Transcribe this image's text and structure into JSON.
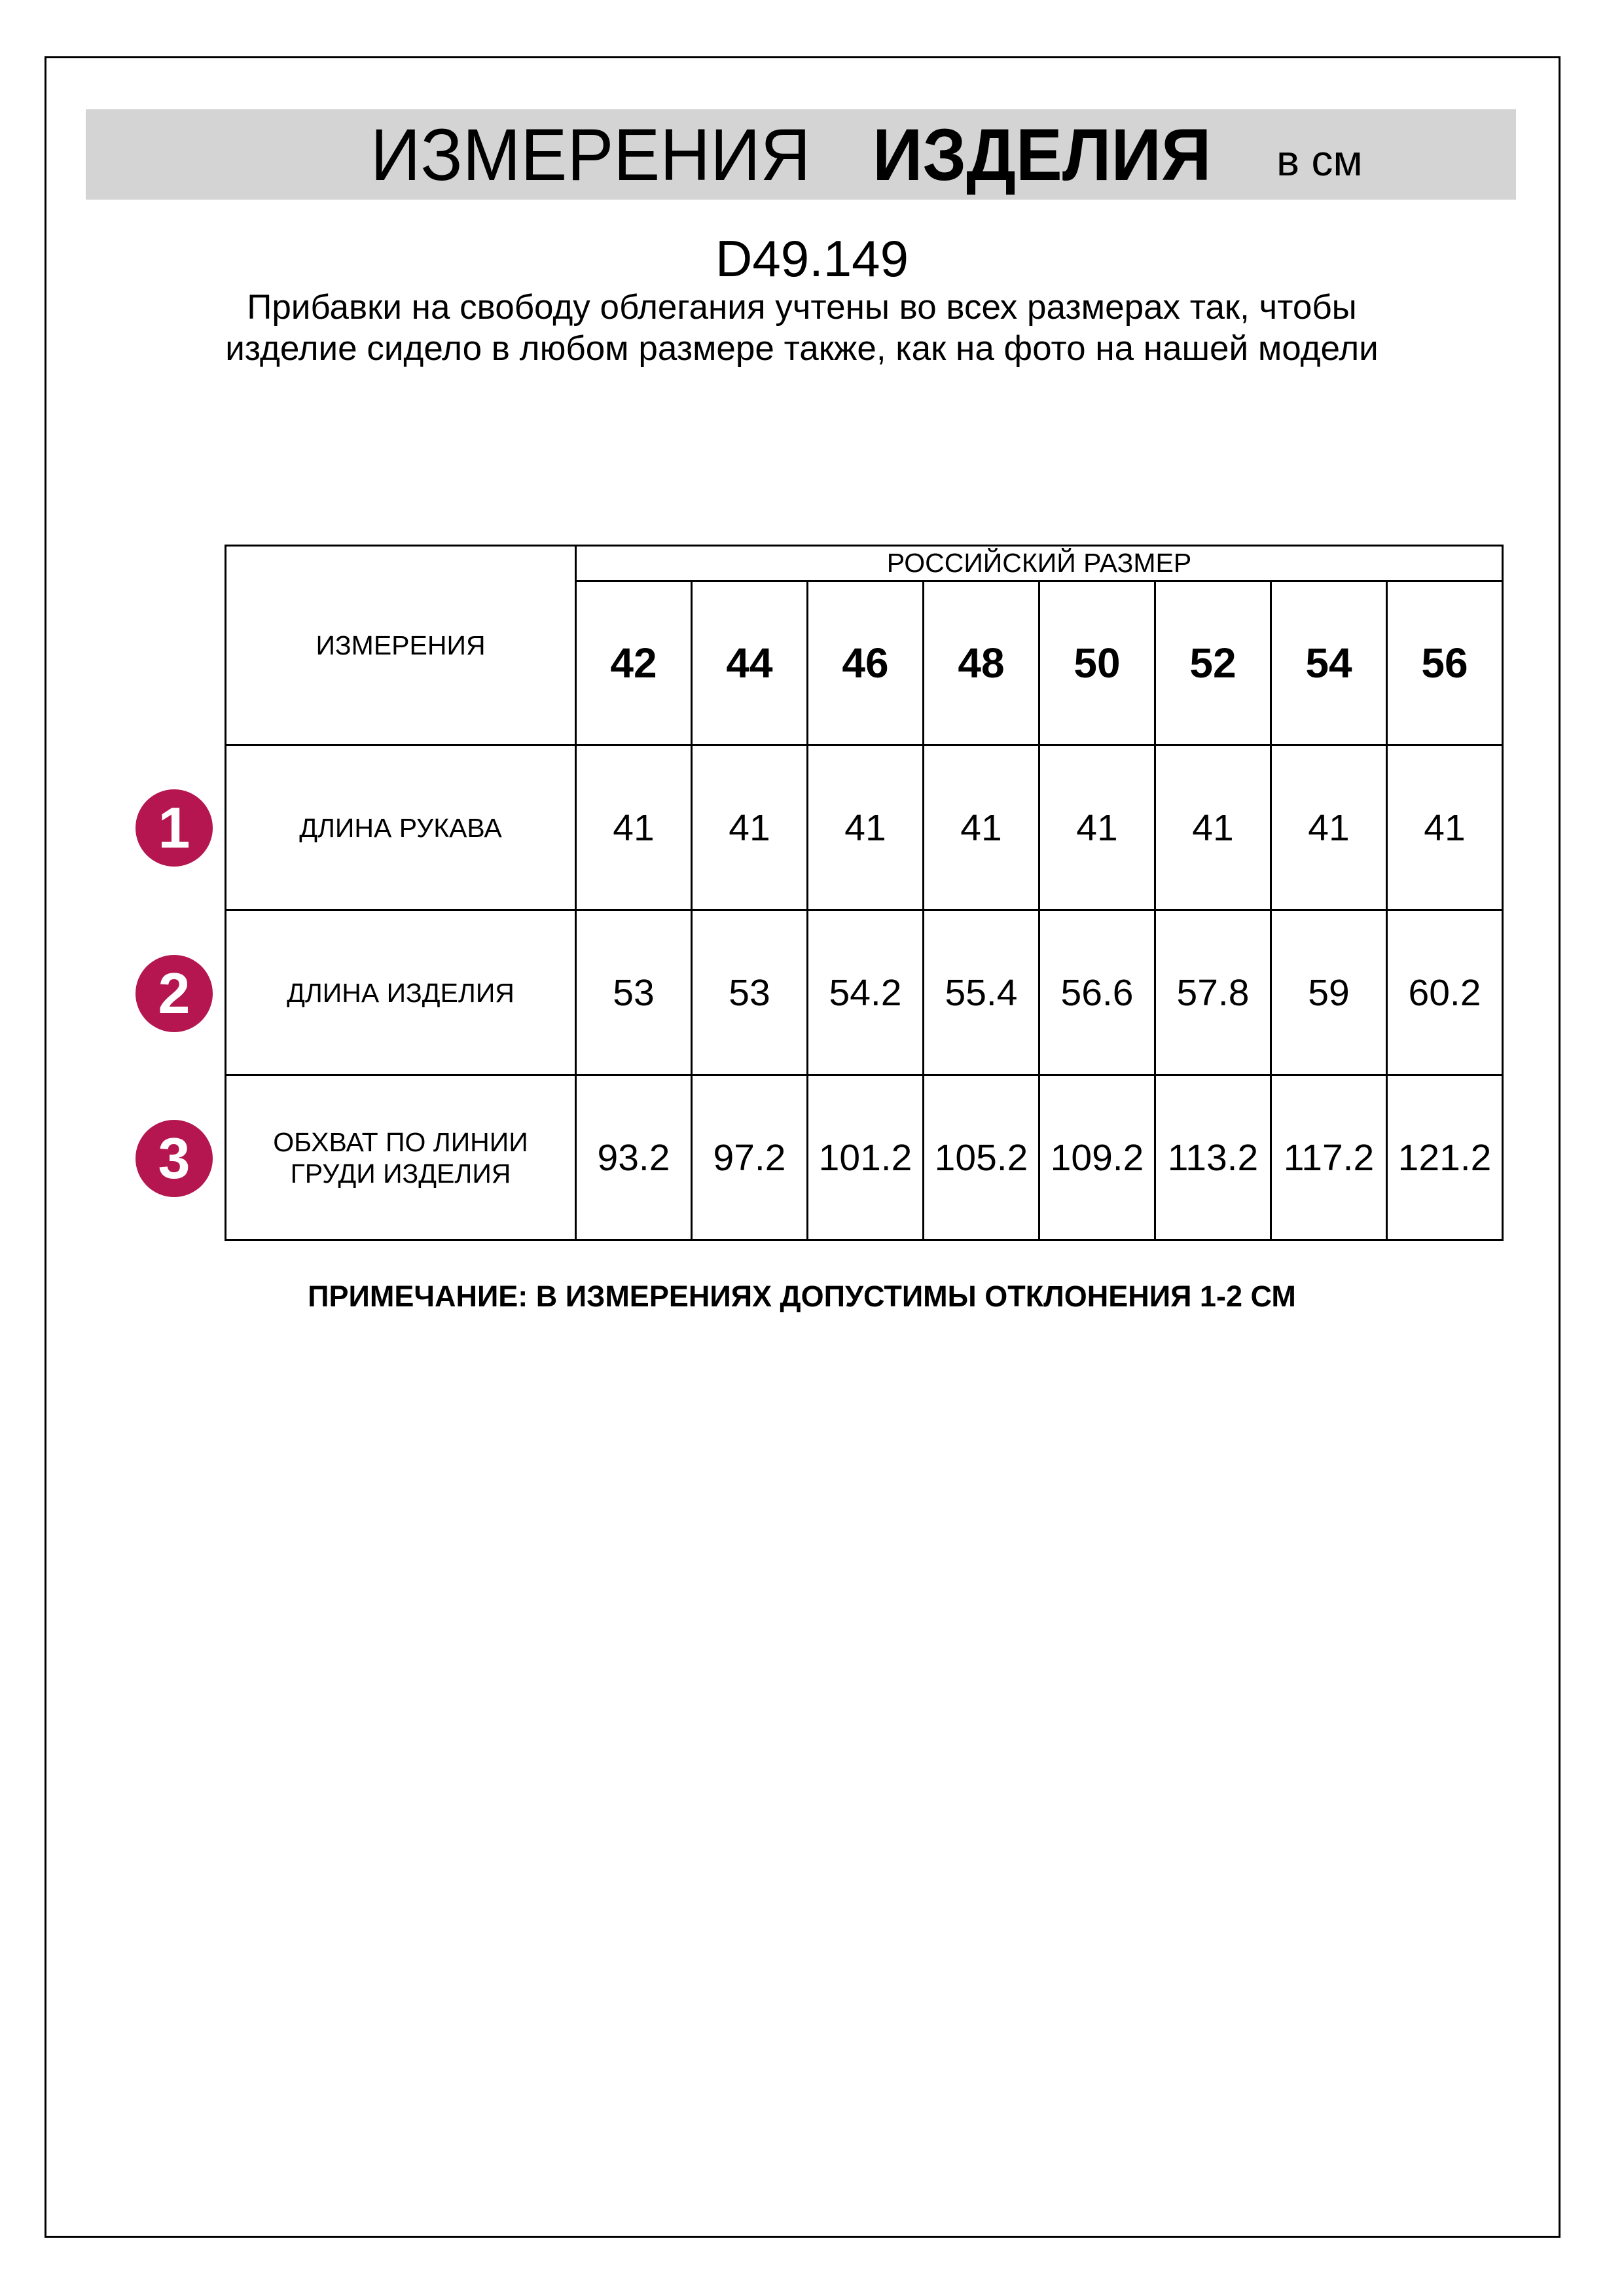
{
  "header": {
    "title_regular": "ИЗМЕРЕНИЯ",
    "title_bold": "ИЗДЕЛИЯ",
    "unit": "в см"
  },
  "article": "D49.149",
  "description": "Прибавки на свободу облегания учтены во всех размерах так, чтобы изделие сидело в любом размере также, как на фото на нашей модели",
  "table": {
    "corner_label": "ИЗМЕРЕНИЯ",
    "size_group_label": "РОССИЙСКИЙ РАЗМЕР",
    "sizes": [
      "42",
      "44",
      "46",
      "48",
      "50",
      "52",
      "54",
      "56"
    ],
    "rows": [
      {
        "number": "1",
        "label": "ДЛИНА РУКАВА",
        "values": [
          "41",
          "41",
          "41",
          "41",
          "41",
          "41",
          "41",
          "41"
        ]
      },
      {
        "number": "2",
        "label": "ДЛИНА ИЗДЕЛИЯ",
        "values": [
          "53",
          "53",
          "54.2",
          "55.4",
          "56.6",
          "57.8",
          "59",
          "60.2"
        ]
      },
      {
        "number": "3",
        "label": "ОБХВАТ ПО ЛИНИИ ГРУДИ ИЗДЕЛИЯ",
        "values": [
          "93.2",
          "97.2",
          "101.2",
          "105.2",
          "109.2",
          "113.2",
          "117.2",
          "121.2"
        ]
      }
    ]
  },
  "note": "ПРИМЕЧАНИЕ: В ИЗМЕРЕНИЯХ ДОПУСТИМЫ ОТКЛОНЕНИЯ 1-2 СМ",
  "colors": {
    "badge": "#b5164f",
    "banner": "#d4d4d4"
  }
}
